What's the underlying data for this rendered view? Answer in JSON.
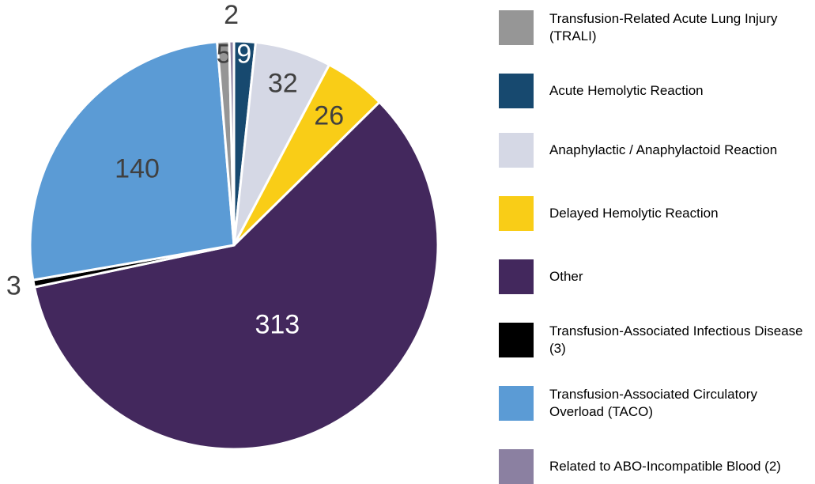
{
  "chart_data": {
    "type": "pie",
    "categories": [
      "Transfusion-Related Acute Lung Injury (TRALI)",
      "Acute Hemolytic Reaction",
      "Anaphylactic / Anaphylactoid Reaction",
      "Delayed Hemolytic Reaction",
      "Other",
      "Transfusion-Associated Infectious Disease (3)",
      "Transfusion-Associated Circulatory Overload (TACO)",
      "Related to ABO-Incompatible Blood (2)"
    ],
    "values": [
      5,
      9,
      32,
      26,
      313,
      3,
      140,
      2
    ],
    "colors": [
      "#969696",
      "#17496f",
      "#d5d8e5",
      "#f9cd17",
      "#43285d",
      "#000000",
      "#5b9bd5",
      "#8b80a1"
    ],
    "legend": "right"
  }
}
